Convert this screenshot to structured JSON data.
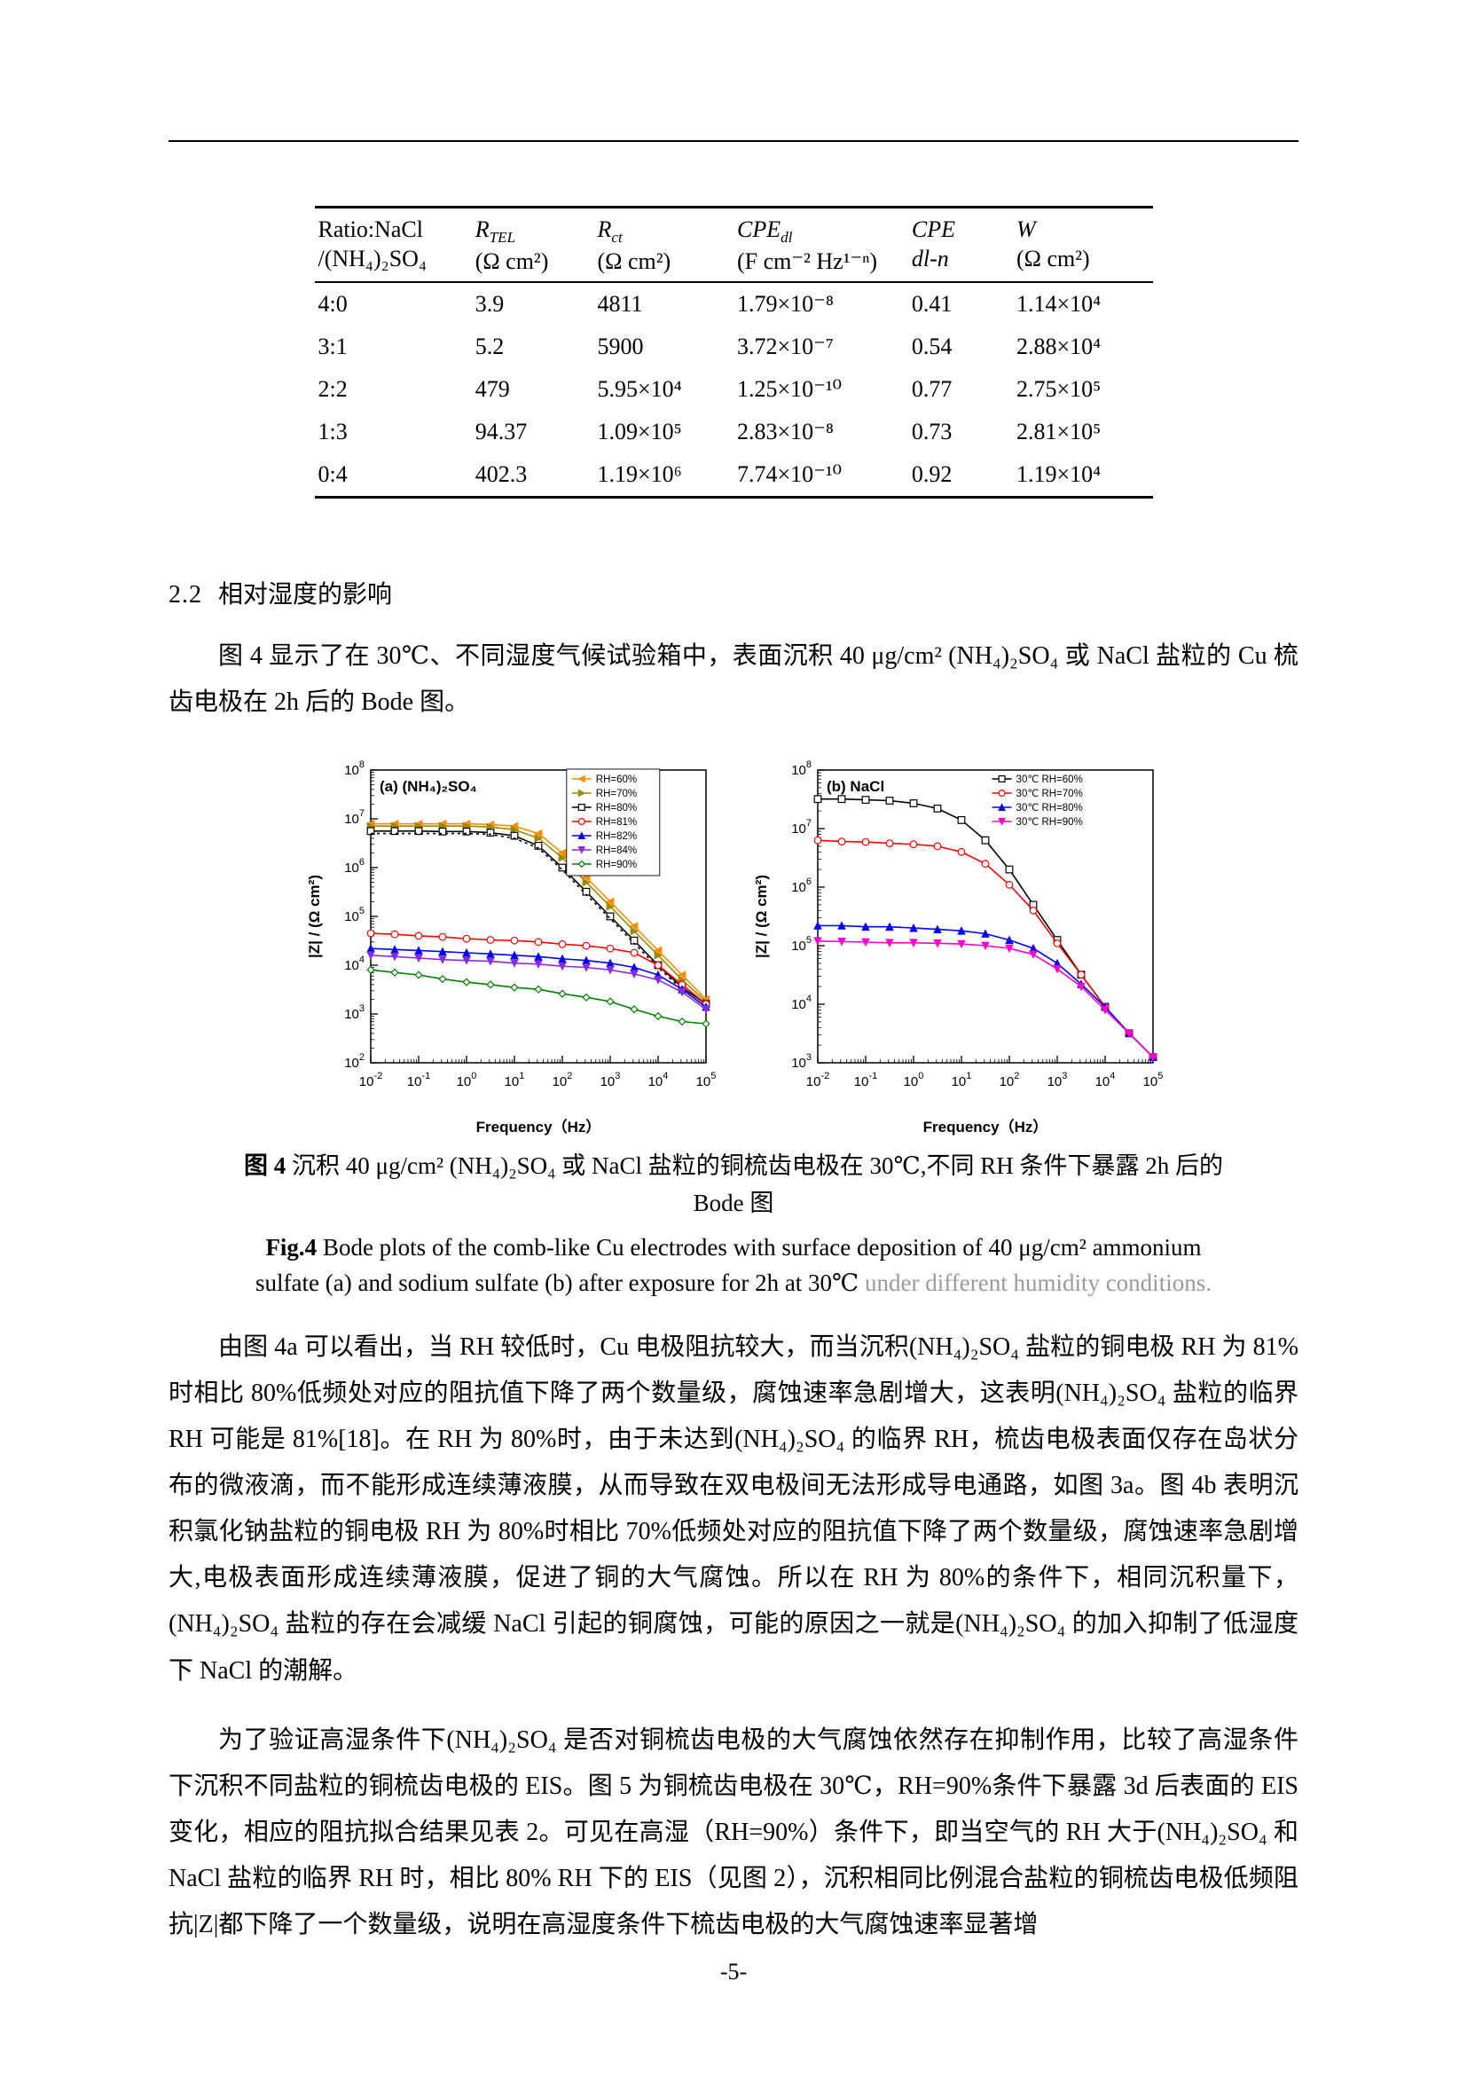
{
  "page": {
    "number": "-5-"
  },
  "table1": {
    "headers": {
      "ratio": {
        "line1": "Ratio:NaCl",
        "line2": "/(NH₄)₂SO₄"
      },
      "rtel": {
        "sym": "R",
        "sub": "TEL",
        "unit": "(Ω cm²)"
      },
      "rct": {
        "sym": "R",
        "sub": "ct",
        "unit": "(Ω cm²)"
      },
      "cpedl": {
        "sym": "CPE",
        "sub": "dl",
        "unit": "(F cm⁻² Hz¹⁻ⁿ)"
      },
      "cpen": {
        "sym": "CPE",
        "line2": "dl-n"
      },
      "w": {
        "sym": "W",
        "unit": "(Ω cm²)"
      }
    },
    "rows": [
      [
        "4:0",
        "3.9",
        "4811",
        "1.79×10⁻⁸",
        "0.41",
        "1.14×10⁴"
      ],
      [
        "3:1",
        "5.2",
        "5900",
        "3.72×10⁻⁷",
        "0.54",
        "2.88×10⁴"
      ],
      [
        "2:2",
        "479",
        "5.95×10⁴",
        "1.25×10⁻¹⁰",
        "0.77",
        "2.75×10⁵"
      ],
      [
        "1:3",
        "94.37",
        "1.09×10⁵",
        "2.83×10⁻⁸",
        "0.73",
        "2.81×10⁵"
      ],
      [
        "0:4",
        "402.3",
        "1.19×10⁶",
        "7.74×10⁻¹⁰",
        "0.92",
        "1.19×10⁴"
      ]
    ]
  },
  "section": {
    "number": "2.2",
    "title": "相对湿度的影响"
  },
  "paragraphs": {
    "p1": "图 4 显示了在 30℃、不同湿度气候试验箱中，表面沉积 40 μg/cm² (NH₄)₂SO₄ 或 NaCl 盐粒的 Cu 梳齿电极在 2h 后的 Bode 图。",
    "p2": "由图 4a 可以看出，当 RH 较低时，Cu 电极阻抗较大，而当沉积(NH₄)₂SO₄ 盐粒的铜电极 RH 为 81%时相比 80%低频处对应的阻抗值下降了两个数量级，腐蚀速率急剧增大，这表明(NH₄)₂SO₄ 盐粒的临界 RH 可能是 81%[18]。在 RH 为 80%时，由于未达到(NH₄)₂SO₄ 的临界 RH，梳齿电极表面仅存在岛状分布的微液滴，而不能形成连续薄液膜，从而导致在双电极间无法形成导电通路，如图 3a。图 4b 表明沉积氯化钠盐粒的铜电极 RH 为 80%时相比 70%低频处对应的阻抗值下降了两个数量级，腐蚀速率急剧增大,电极表面形成连续薄液膜，促进了铜的大气腐蚀。所以在 RH 为 80%的条件下，相同沉积量下，(NH₄)₂SO₄ 盐粒的存在会减缓 NaCl 引起的铜腐蚀，可能的原因之一就是(NH₄)₂SO₄ 的加入抑制了低湿度下 NaCl 的潮解。",
    "p3": "为了验证高湿条件下(NH₄)₂SO₄ 是否对铜梳齿电极的大气腐蚀依然存在抑制作用，比较了高湿条件下沉积不同盐粒的铜梳齿电极的 EIS。图 5 为铜梳齿电极在 30℃，RH=90%条件下暴露 3d 后表面的 EIS 变化，相应的阻抗拟合结果见表 2。可见在高湿（RH=90%）条件下，即当空气的 RH 大于(NH₄)₂SO₄ 和 NaCl 盐粒的临界 RH 时，相比 80% RH 下的 EIS（见图 2），沉积相同比例混合盐粒的铜梳齿电极低频阻抗|Z|都下降了一个数量级，说明在高湿度条件下梳齿电极的大气腐蚀速率显著增"
  },
  "figure4": {
    "caption_zh_label": "图 4",
    "caption_zh_text": " 沉积 40 μg/cm² (NH₄)₂SO₄ 或 NaCl 盐粒的铜梳齿电极在 30℃,不同 RH 条件下暴露 2h 后的 Bode 图",
    "caption_en_label": "Fig.4",
    "caption_en_main": " Bode plots of the comb-like Cu electrodes with surface deposition of 40 μg/cm² ammonium sulfate (a) and sodium sulfate (b) after exposure for 2h at 30℃ ",
    "caption_en_gray": "under different humidity conditions."
  },
  "chart_data": [
    {
      "type": "line",
      "panel_label": "(a)",
      "title": "(NH₄)₂SO₄",
      "xlabel": "Frequency（Hz）",
      "ylabel": "|Z| / (Ω cm²)",
      "x_scale": "log",
      "y_scale": "log",
      "xlim": [
        0.01,
        100000
      ],
      "ylim": [
        100,
        100000000
      ],
      "legend_position": "top-right-inside",
      "legend_frame": true,
      "x_hz": [
        0.01,
        0.0316,
        0.1,
        0.316,
        1,
        3.16,
        10,
        31.6,
        100,
        316,
        1000,
        3160,
        10000,
        31600,
        100000
      ],
      "series": [
        {
          "name": "RH=60%",
          "color": "#FF8C00",
          "marker": "triangle-left",
          "open": false,
          "z_ohm_cm2": [
            7900000.0,
            7900000.0,
            7900000.0,
            7900000.0,
            7900000.0,
            7600000.0,
            7100000.0,
            5000000.0,
            2000000.0,
            630000.0,
            200000.0,
            63000.0,
            20000.0,
            6300.0,
            2000.0
          ]
        },
        {
          "name": "RH=70%",
          "color": "#9C8A00",
          "marker": "triangle-right",
          "open": false,
          "z_ohm_cm2": [
            7100000.0,
            7100000.0,
            7100000.0,
            7100000.0,
            7100000.0,
            6800000.0,
            6000000.0,
            4000000.0,
            1600000.0,
            500000.0,
            160000.0,
            50000.0,
            16000.0,
            5000.0,
            1800.0
          ]
        },
        {
          "name": "RH=80%",
          "color": "#000000",
          "marker": "square",
          "open": true,
          "z_ohm_cm2": [
            5600000.0,
            5600000.0,
            5600000.0,
            5500000.0,
            5500000.0,
            5200000.0,
            4500000.0,
            2800000.0,
            1000000.0,
            320000.0,
            100000.0,
            32000.0,
            10000.0,
            3500.0,
            1600.0
          ]
        },
        {
          "name": "",
          "color": "#000000",
          "marker": null,
          "dash": "3 4",
          "open": true,
          "z_ohm_cm2": [
            5000000.0,
            5000000.0,
            5000000.0,
            5000000.0,
            5000000.0,
            4800000.0,
            4000000.0,
            2500000.0,
            900000.0,
            280000.0,
            90000.0,
            28000.0,
            9000.0,
            3200.0,
            1400.0
          ]
        },
        {
          "name": "RH=81%",
          "color": "#FF0000",
          "marker": "circle",
          "open": true,
          "z_ohm_cm2": [
            45000.0,
            43000.0,
            40000.0,
            38000.0,
            35000.0,
            33000.0,
            32000.0,
            30000.0,
            27000.0,
            25000.0,
            22000.0,
            18000.0,
            10000.0,
            4000.0,
            1600.0
          ]
        },
        {
          "name": "RH=82%",
          "color": "#0000FF",
          "marker": "triangle-up",
          "open": false,
          "z_ohm_cm2": [
            22000.0,
            21000.0,
            20000.0,
            19000.0,
            18000.0,
            17000.0,
            16000.0,
            15000.0,
            13500.0,
            12500.0,
            11000.0,
            9000.0,
            6300.0,
            3200.0,
            1400.0
          ]
        },
        {
          "name": "RH=84%",
          "color": "#8A2BE2",
          "marker": "triangle-down",
          "open": false,
          "z_ohm_cm2": [
            16000.0,
            15000.0,
            14000.0,
            13000.0,
            12500.0,
            12000.0,
            11000.0,
            10500.0,
            9500.0,
            9000.0,
            8000.0,
            6600.0,
            5000.0,
            2800.0,
            1250.0
          ]
        },
        {
          "name": "RH=90%",
          "color": "#008000",
          "marker": "diamond",
          "open": true,
          "z_ohm_cm2": [
            8000.0,
            7100.0,
            6300.0,
            5200.0,
            4500.0,
            4000.0,
            3500.0,
            3200.0,
            2600.0,
            2200.0,
            1800.0,
            1250.0,
            900.0,
            700.0,
            630.0
          ]
        }
      ]
    },
    {
      "type": "line",
      "panel_label": "(b)",
      "title": "NaCl",
      "xlabel": "Frequency（Hz）",
      "ylabel": "|Z| / (Ω cm²)",
      "x_scale": "log",
      "y_scale": "log",
      "xlim": [
        0.01,
        100000
      ],
      "ylim": [
        1000,
        100000000
      ],
      "legend_position": "top-right-inside",
      "legend_frame": false,
      "x_hz": [
        0.01,
        0.0316,
        0.1,
        0.316,
        1,
        3.16,
        10,
        31.6,
        100,
        316,
        1000,
        3160,
        10000,
        31600,
        100000
      ],
      "series": [
        {
          "name": "30℃ RH=60%",
          "color": "#000000",
          "marker": "square",
          "open": true,
          "z_ohm_cm2": [
            32000000.0,
            32000000.0,
            31000000.0,
            30000000.0,
            27000000.0,
            22000000.0,
            14000000.0,
            6300000.0,
            2000000.0,
            500000.0,
            125000.0,
            32000.0,
            9000.0,
            3200.0,
            1250.0
          ]
        },
        {
          "name": "30℃ RH=70%",
          "color": "#FF0000",
          "marker": "circle",
          "open": true,
          "z_ohm_cm2": [
            6300000.0,
            6000000.0,
            5900000.0,
            5600000.0,
            5400000.0,
            5000000.0,
            4000000.0,
            2500000.0,
            1100000.0,
            400000.0,
            110000.0,
            32000.0,
            9000.0,
            3200.0,
            1250.0
          ]
        },
        {
          "name": "30℃ RH=80%",
          "color": "#0000FF",
          "marker": "triangle-up",
          "open": false,
          "z_ohm_cm2": [
            220000.0,
            220000.0,
            210000.0,
            210000.0,
            200000.0,
            190000.0,
            180000.0,
            160000.0,
            125000.0,
            90000.0,
            50000.0,
            22000.0,
            9000.0,
            3200.0,
            1250.0
          ]
        },
        {
          "name": "30℃ RH=90%",
          "color": "#FF00CC",
          "marker": "triangle-down",
          "open": false,
          "z_ohm_cm2": [
            120000.0,
            118000.0,
            115000.0,
            112000.0,
            112000.0,
            110000.0,
            107000.0,
            100000.0,
            90000.0,
            71000.0,
            40000.0,
            20000.0,
            8000.0,
            3200.0,
            1250.0
          ]
        }
      ]
    }
  ]
}
